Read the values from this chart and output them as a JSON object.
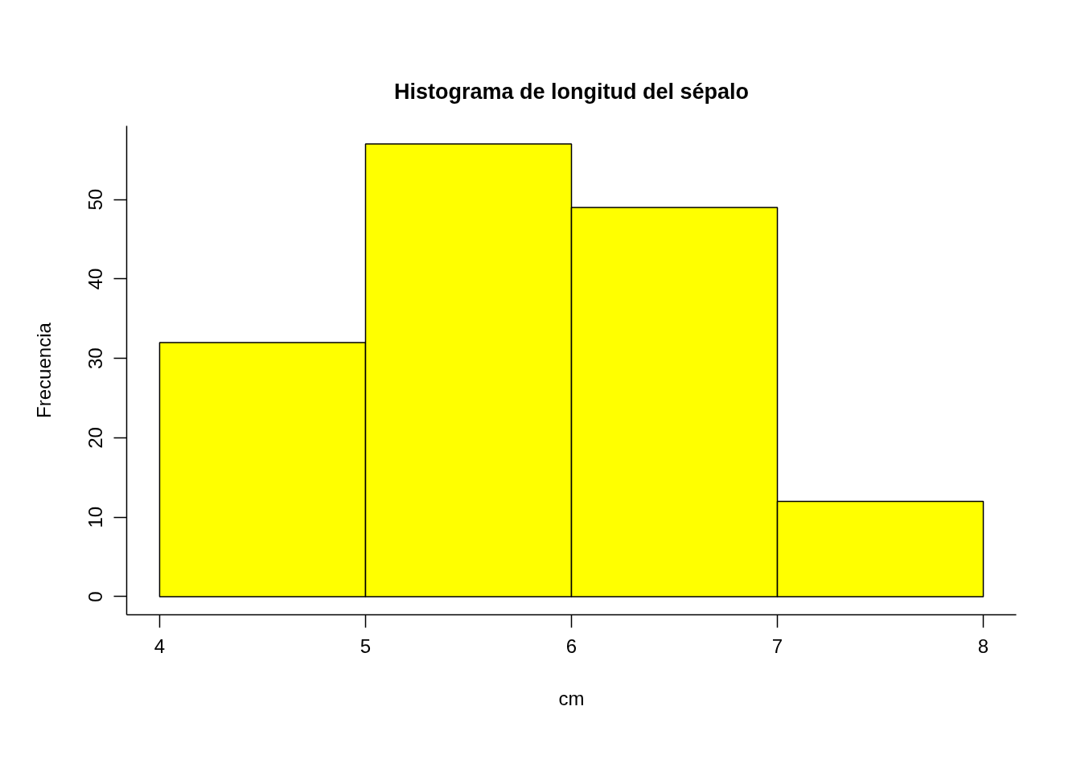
{
  "chart_data": {
    "type": "histogram",
    "title": "Histograma de longitud del sépalo",
    "xlabel": "cm",
    "ylabel": "Frecuencia",
    "bins": [
      4,
      5,
      6,
      7,
      8
    ],
    "values": [
      32,
      57,
      49,
      12
    ],
    "color": "#ffff00",
    "xlim": [
      3.84,
      8.16
    ],
    "ylim": [
      -2.28,
      59.28
    ],
    "xticks": [
      4,
      5,
      6,
      7,
      8
    ],
    "yticks": [
      0,
      10,
      20,
      30,
      40,
      50
    ],
    "grid": false
  }
}
